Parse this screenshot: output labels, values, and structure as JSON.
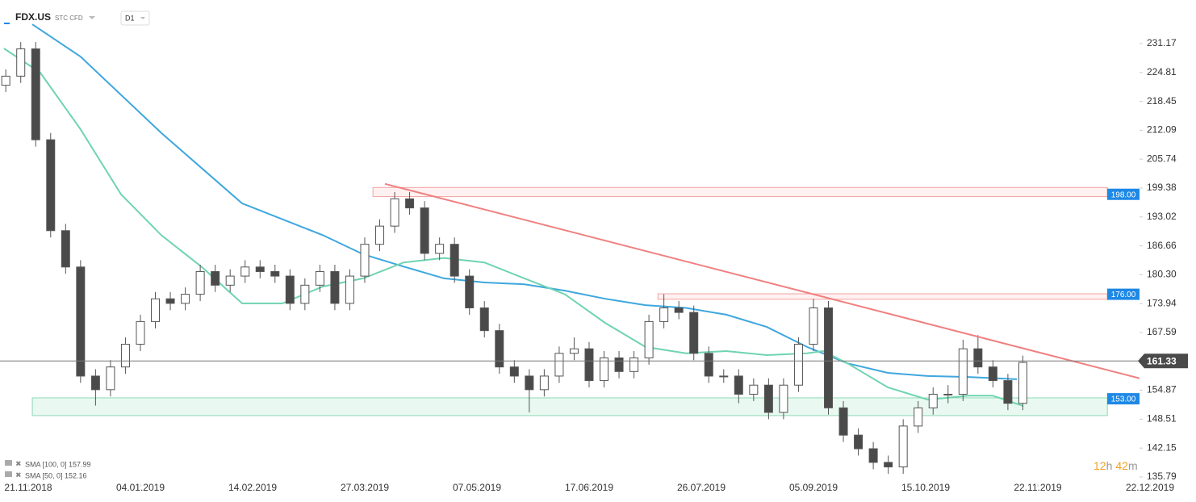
{
  "header": {
    "symbol": "FDX.US",
    "instrument": "STC CFD",
    "interval": "D1"
  },
  "legend": [
    "SMA [100, 0] 157.99",
    "SMA [50, 0] 152.16"
  ],
  "timer": {
    "hours": 12,
    "hours_unit": "h",
    "minutes": 42,
    "minutes_unit": "m"
  },
  "chart_data": {
    "type": "candlestick",
    "up_color": "#ffffff",
    "down_color": "#4a4a4a",
    "wick_color": "#555555",
    "x": [
      -6,
      -2,
      2,
      6,
      10,
      14,
      18,
      22,
      26,
      30,
      34,
      38,
      42,
      46,
      50,
      54,
      58,
      62,
      66,
      70,
      74,
      78,
      82,
      86,
      90,
      94,
      98,
      102,
      106,
      110,
      114,
      118,
      122,
      126,
      130,
      134,
      138,
      142,
      146,
      150,
      154,
      158,
      162,
      166,
      170,
      174,
      178,
      182,
      186,
      190,
      194,
      198,
      202,
      206,
      210,
      214,
      218,
      222,
      226,
      230,
      234,
      238,
      242,
      246,
      250,
      254,
      258,
      262,
      266
    ],
    "open": [
      222,
      224,
      230,
      210,
      190,
      182,
      158,
      155,
      160,
      165,
      170,
      175,
      174,
      176,
      181,
      178,
      180,
      182,
      181,
      180,
      174,
      178,
      181,
      174,
      180,
      187,
      191,
      197,
      195,
      185,
      187,
      180,
      173,
      168,
      160,
      158,
      155,
      158,
      163,
      164,
      157,
      162,
      159,
      162,
      170,
      173,
      172,
      163,
      158,
      158,
      154,
      156,
      150,
      156,
      165,
      173,
      151,
      145,
      142,
      139,
      138,
      147,
      151,
      154,
      154,
      164,
      160,
      157,
      152
    ],
    "high": [
      225.5,
      231.5,
      231.5,
      211.5,
      191.5,
      183.5,
      159.5,
      161.5,
      166.5,
      171.5,
      176.5,
      176.5,
      177.5,
      182.5,
      182.5,
      181.5,
      183.5,
      183.5,
      182.5,
      181.5,
      179.5,
      182.5,
      182.5,
      181.5,
      188.5,
      192.5,
      198.5,
      198.5,
      196.5,
      188.5,
      188.5,
      181.5,
      174.5,
      169.5,
      161.5,
      159.5,
      159.5,
      164.5,
      166.5,
      165.5,
      163.5,
      163.5,
      163.5,
      171.5,
      176,
      174.5,
      173.5,
      164.5,
      159.5,
      159.5,
      157.5,
      157.5,
      157.5,
      166.5,
      175,
      174.5,
      152.5,
      146.5,
      143.5,
      140.5,
      148.5,
      152.5,
      155.5,
      156,
      166,
      167,
      161.5,
      158.5,
      162.5
    ],
    "low": [
      220.5,
      222.5,
      208.5,
      188.5,
      180.5,
      156.5,
      151.5,
      153.5,
      158.5,
      163.5,
      168.5,
      172.5,
      172.5,
      174.5,
      176.5,
      176.5,
      178.5,
      179.5,
      178.5,
      172.5,
      172.5,
      176.5,
      172.5,
      172.5,
      178.5,
      185.5,
      189.5,
      193.5,
      183.5,
      183.5,
      178.5,
      171.5,
      166.5,
      158.5,
      156.5,
      150,
      153.5,
      156.5,
      161.5,
      155.5,
      155.5,
      157.5,
      157.5,
      160.5,
      168.5,
      170.5,
      161.5,
      156.5,
      156.5,
      152,
      152.5,
      148.5,
      148.5,
      154.5,
      163.5,
      149.5,
      143.5,
      140.5,
      137.5,
      136.5,
      136.5,
      145.5,
      149.5,
      152,
      152.5,
      158.5,
      155.5,
      150.5,
      150.5
    ],
    "close": [
      224,
      230,
      210,
      190,
      182,
      158,
      155,
      160,
      165,
      170,
      175,
      174,
      176,
      181,
      178,
      180,
      182,
      181,
      180,
      174,
      178,
      181,
      174,
      180,
      187,
      191,
      197,
      195,
      185,
      187,
      180,
      173,
      168,
      160,
      158,
      155,
      158,
      163,
      164,
      157,
      162,
      159,
      162,
      170,
      173,
      172,
      163,
      158,
      158,
      154,
      156,
      150,
      156,
      165,
      173,
      151,
      145,
      142,
      139,
      138,
      147,
      151,
      154,
      154,
      164,
      160,
      157,
      152,
      161
    ],
    "lines": [
      {
        "color": "#3ea7de",
        "x": [
          1.1,
          14,
          35.6,
          57.2,
          78.8,
          89.6,
          100.4,
          111.2,
          122,
          132.7,
          143.5,
          154.3,
          165.1,
          175.9,
          186.7,
          197.5,
          208.3,
          219.1,
          229.9,
          240.6,
          251.4,
          264.4
        ],
        "values": [
          235.4,
          228.3,
          211.5,
          196,
          189,
          184.8,
          182.1,
          179.5,
          178.6,
          178.2,
          176.8,
          175,
          173.6,
          173,
          171.5,
          168.8,
          164.4,
          160.8,
          158.7,
          158,
          157.8,
          157.3
        ]
      },
      {
        "color": "#6fd4b0",
        "x": [
          -6.5,
          3.2,
          14,
          24.8,
          35.6,
          46.4,
          57.2,
          68,
          78.8,
          89.6,
          100.4,
          111.2,
          122,
          132.7,
          143.5,
          154.3,
          165.1,
          175.9,
          186.7,
          197.5,
          208.3,
          212.6,
          219.1,
          229.9,
          240.6,
          251.4,
          257.9,
          266.1
        ],
        "values": [
          230.1,
          224.8,
          212.3,
          198,
          189,
          182,
          174,
          174,
          177.7,
          179.5,
          183,
          184,
          183,
          179.5,
          176,
          169.7,
          164.4,
          163,
          163.5,
          162.6,
          163,
          163.5,
          160.8,
          155.5,
          152.8,
          153.7,
          153.7,
          151.4
        ]
      }
    ],
    "zones": [
      {
        "level": 198,
        "label": "198.00",
        "low": 197.5,
        "high": 199.5,
        "start": 92.2,
        "end": 288.6,
        "fill": "rgba(255,80,80,0.08)",
        "stroke": "#f3a3a3"
      },
      {
        "level": 176,
        "label": "176.00",
        "low": 174.9,
        "high": 176.1,
        "start": 168.4,
        "end": 288.6,
        "fill": "rgba(255,80,80,0.08)",
        "stroke": "#f3a3a3"
      },
      {
        "level": 153,
        "label": "153.00",
        "low": 149.3,
        "high": 153.2,
        "start": 1.1,
        "end": 288.6,
        "fill": "rgba(40,200,130,0.1)",
        "stroke": "#8ed9b5"
      }
    ],
    "zone_label_color": "#1e88e5",
    "trendline": {
      "x": [
        95.4,
        297.2
      ],
      "values": [
        200.3,
        157.5
      ],
      "color": "#f08080"
    },
    "last_price": 161.33,
    "xlim": [
      -7.55,
      297.2
    ],
    "xticks": [
      {
        "value": 0,
        "label": "21.11.2018"
      },
      {
        "value": 30,
        "label": "04.01.2019"
      },
      {
        "value": 60,
        "label": "14.02.2019"
      },
      {
        "value": 90,
        "label": "27.03.2019"
      },
      {
        "value": 120,
        "label": "07.05.2019"
      },
      {
        "value": 150,
        "label": "17.06.2019"
      },
      {
        "value": 180,
        "label": "26.07.2019"
      },
      {
        "value": 210,
        "label": "05.09.2019"
      },
      {
        "value": 240,
        "label": "15.10.2019"
      },
      {
        "value": 270,
        "label": "22.11.2019"
      },
      {
        "value": 300,
        "label": "22.12.2019"
      }
    ],
    "ylim": [
      134.19,
      240.76
    ],
    "yticks": [
      135.79,
      142.15,
      148.51,
      154.87,
      161.23,
      167.59,
      173.94,
      {
        "value": 180.3,
        "label": "180.30"
      },
      186.66,
      193.02,
      199.38,
      205.74,
      212.09,
      218.45,
      224.81,
      231.17
    ]
  }
}
